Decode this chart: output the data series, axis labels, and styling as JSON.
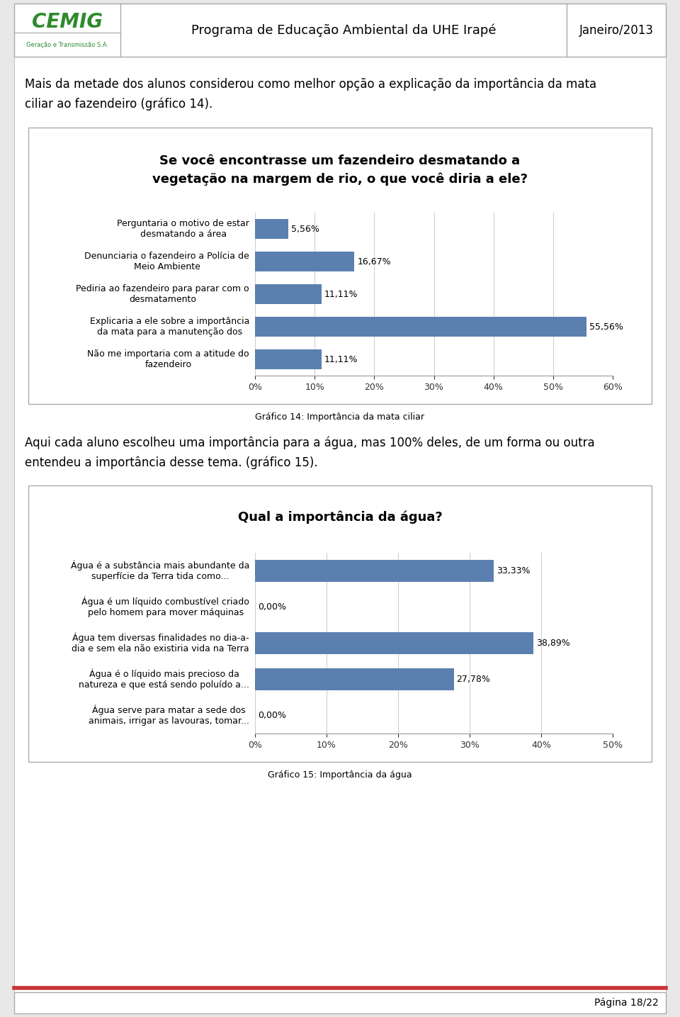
{
  "header_title": "Programa de Educação Ambiental da UHE Irapé",
  "header_date": "Janeiro/2013",
  "page_text1_line1": "Mais da metade dos alunos considerou como melhor opção a explicação da importância da mata",
  "page_text1_line2": "ciliar ao fazendeiro (gráfico 14).",
  "chart1_title_line1": "Se você encontrasse um fazendeiro desmatando a",
  "chart1_title_line2": "vegetação na margem de rio, o que você diria a ele?",
  "chart1_categories": [
    "Perguntaria o motivo de estar\ndesmatando a área",
    "Denunciaria o fazendeiro a Polícia de\nMeio Ambiente",
    "Pediria ao fazendeiro para parar com o\ndesmatamento",
    "Explicaria a ele sobre a importância\nda mata para a manutenção dos",
    "Não me importaria com a atitude do\nfazendeiro"
  ],
  "chart1_values": [
    5.56,
    16.67,
    11.11,
    55.56,
    11.11
  ],
  "chart1_labels": [
    "5,56%",
    "16,67%",
    "11,11%",
    "55,56%",
    "11,11%"
  ],
  "chart1_xlim": [
    0,
    60
  ],
  "chart1_xticks": [
    0,
    10,
    20,
    30,
    40,
    50,
    60
  ],
  "chart1_xtick_labels": [
    "0%",
    "10%",
    "20%",
    "30%",
    "40%",
    "50%",
    "60%"
  ],
  "chart1_caption": "Gráfico 14: Importância da mata ciliar",
  "bar_color": "#5b7faf",
  "page_text2_line1": "Aqui cada aluno escolheu uma importância para a água, mas 100% deles, de um forma ou outra",
  "page_text2_line2": "entendeu a importância desse tema. (gráfico 15).",
  "chart2_title": "Qual a importância da água?",
  "chart2_categories": [
    "Água é a substância mais abundante da\nsuperfície da Terra tida como...",
    "Água é um líquido combustível criado\npelo homem para mover máquinas",
    "Água tem diversas finalidades no dia-a-\ndia e sem ela não existiria vida na Terra",
    "Água é o líquido mais precioso da\nnatureza e que está sendo poluído a...",
    "Água serve para matar a sede dos\nanimais, irrigar as lavouras, tomar..."
  ],
  "chart2_values": [
    33.33,
    0.0,
    38.89,
    27.78,
    0.0
  ],
  "chart2_labels": [
    "33,33%",
    "0,00%",
    "38,89%",
    "27,78%",
    "0,00%"
  ],
  "chart2_xlim": [
    0,
    50
  ],
  "chart2_xticks": [
    0,
    10,
    20,
    30,
    40,
    50
  ],
  "chart2_xtick_labels": [
    "0%",
    "10%",
    "20%",
    "30%",
    "40%",
    "50%"
  ],
  "chart2_caption": "Gráfico 15: Importância da água",
  "footer_text": "Página 18/22",
  "page_bg": "#e8e8e8",
  "body_bg": "#ffffff",
  "bar_label_font_size": 9,
  "caption_font_size": 8
}
